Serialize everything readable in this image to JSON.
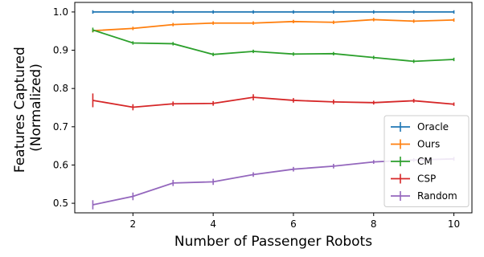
{
  "chart_data": {
    "type": "line",
    "xlabel": "Number of Passenger Robots",
    "ylabel_lines": [
      "Features Captured",
      "(Normalized)"
    ],
    "x": [
      1,
      2,
      3,
      4,
      5,
      6,
      7,
      8,
      9,
      10
    ],
    "xlim": [
      0.55,
      10.45
    ],
    "ylim": [
      0.475,
      1.025
    ],
    "xticks": [
      2,
      4,
      6,
      8,
      10
    ],
    "yticks": [
      0.5,
      0.6,
      0.7,
      0.8,
      0.9,
      1.0
    ],
    "ytick_labels": [
      "0.5",
      "0.6",
      "0.7",
      "0.8",
      "0.9",
      "1.0"
    ],
    "legend_position": "lower-right",
    "series": [
      {
        "name": "Oracle",
        "color": "#1f77b4",
        "values": [
          1.0,
          1.0,
          1.0,
          1.0,
          1.0,
          1.0,
          1.0,
          1.0,
          1.0,
          1.0
        ],
        "err": [
          0,
          0,
          0,
          0,
          0,
          0,
          0,
          0,
          0,
          0
        ]
      },
      {
        "name": "Ours",
        "color": "#ff7f0e",
        "values": [
          0.951,
          0.957,
          0.967,
          0.971,
          0.971,
          0.975,
          0.973,
          0.98,
          0.976,
          0.979
        ],
        "err": [
          0.002,
          0.002,
          0.002,
          0.002,
          0.002,
          0.002,
          0.002,
          0.002,
          0.002,
          0.002
        ]
      },
      {
        "name": "CM",
        "color": "#2ca02c",
        "values": [
          0.953,
          0.919,
          0.917,
          0.889,
          0.897,
          0.89,
          0.891,
          0.881,
          0.871,
          0.876
        ],
        "err": [
          0.006,
          0.004,
          0.004,
          0.004,
          0.004,
          0.004,
          0.004,
          0.003,
          0.004,
          0.003
        ]
      },
      {
        "name": "CSP",
        "color": "#d62728",
        "values": [
          0.769,
          0.751,
          0.76,
          0.761,
          0.777,
          0.769,
          0.765,
          0.763,
          0.768,
          0.759
        ],
        "err": [
          0.018,
          0.008,
          0.006,
          0.006,
          0.008,
          0.006,
          0.006,
          0.005,
          0.005,
          0.004
        ]
      },
      {
        "name": "Random",
        "color": "#9467bd",
        "values": [
          0.496,
          0.518,
          0.553,
          0.556,
          0.575,
          0.589,
          0.597,
          0.608,
          0.613,
          0.616
        ],
        "err": [
          0.012,
          0.01,
          0.008,
          0.008,
          0.006,
          0.006,
          0.006,
          0.005,
          0.005,
          0.005
        ]
      }
    ]
  }
}
